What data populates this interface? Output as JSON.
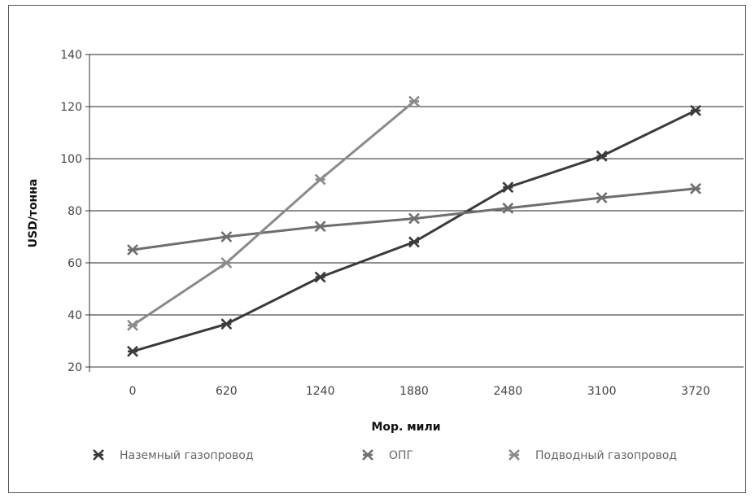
{
  "chart_data": {
    "type": "line",
    "title": "",
    "xlabel": "Мор. мили",
    "ylabel": "USD/тонна",
    "categories": [
      "0",
      "620",
      "1240",
      "1880",
      "2480",
      "3100",
      "3720"
    ],
    "ylim": [
      20,
      140
    ],
    "yticks": [
      20,
      40,
      60,
      80,
      100,
      120,
      140
    ],
    "grid": true,
    "legend_position": "bottom",
    "series": [
      {
        "name": "Наземный газопровод",
        "values": [
          26,
          36.5,
          54.5,
          68,
          89,
          101,
          118.5
        ],
        "color": "#3a3a3a",
        "marker": "cross-dark"
      },
      {
        "name": "ОПГ",
        "values": [
          65,
          70,
          74,
          77,
          81,
          85,
          88.5
        ],
        "color": "#6e6e6e",
        "marker": "cross"
      },
      {
        "name": "Подводный газопровод",
        "values": [
          36,
          60,
          92,
          122,
          null,
          null,
          null
        ],
        "color": "#8a8a8a",
        "marker": "cross-light"
      }
    ]
  }
}
